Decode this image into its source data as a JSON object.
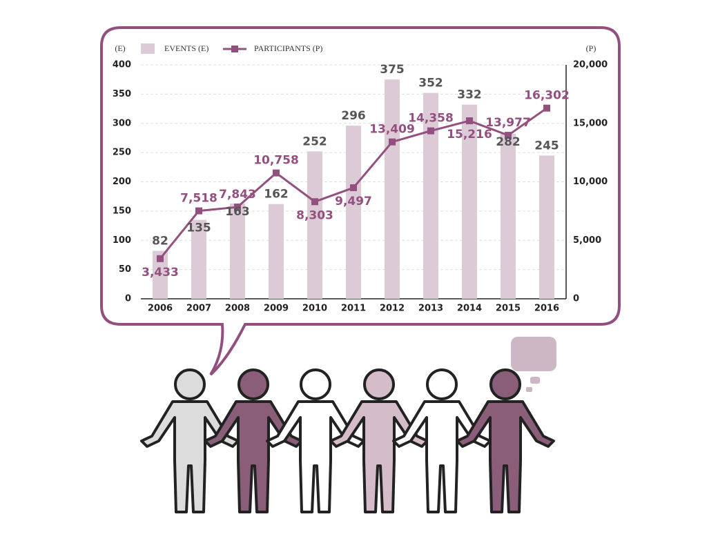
{
  "chart_data": {
    "type": "bar-line",
    "y_axis_label": "(E)",
    "y2_axis_label": "(P)",
    "categories": [
      "2006",
      "2007",
      "2008",
      "2009",
      "2010",
      "2011",
      "2012",
      "2013",
      "2014",
      "2015",
      "2016"
    ],
    "series": [
      {
        "name": "EVENTS (E)",
        "type": "bar",
        "color": "#dccbd6",
        "values": [
          82,
          135,
          163,
          162,
          252,
          296,
          375,
          352,
          332,
          282,
          245
        ]
      },
      {
        "name": "PARTICIPANTS (P)",
        "type": "line",
        "axis": "y2",
        "color": "#93507f",
        "values": [
          3433,
          7518,
          7843,
          10758,
          8303,
          9497,
          13409,
          14358,
          15216,
          13977,
          16302
        ],
        "value_labels": [
          "3,433",
          "7,518",
          "7,843",
          "10,758",
          "8,303",
          "9,497",
          "13,409",
          "14,358",
          "15,216",
          "13,977",
          "16,302"
        ]
      }
    ],
    "ylim": [
      0,
      400
    ],
    "yticks": [
      0,
      50,
      100,
      150,
      200,
      250,
      300,
      350,
      400
    ],
    "y2lim": [
      0,
      20000
    ],
    "y2ticks": [
      0,
      {
        "value": 5000,
        "label": "5,000"
      },
      {
        "value": 10000,
        "label": "10,000"
      },
      {
        "value": 15000,
        "label": "15,000"
      },
      {
        "value": 20000,
        "label": "20,000"
      }
    ],
    "grid": true,
    "legend": "top"
  }
}
